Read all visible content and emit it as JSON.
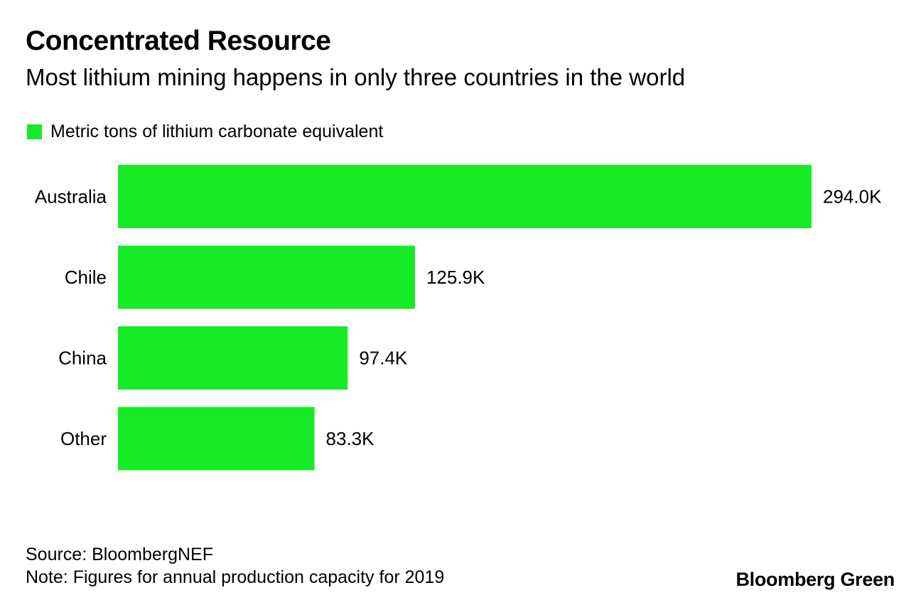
{
  "colors": {
    "bar": "#16eb25",
    "text": "#000000",
    "background": "#ffffff"
  },
  "chart_data": {
    "type": "bar",
    "orientation": "horizontal",
    "title": "Concentrated Resource",
    "subtitle": "Most lithium mining happens in only three countries in the world",
    "legend": {
      "position": "top-left",
      "entries": [
        "Metric tons of lithium carbonate equivalent"
      ]
    },
    "categories": [
      "Australia",
      "Chile",
      "China",
      "Other"
    ],
    "series": [
      {
        "name": "Metric tons of lithium carbonate equivalent",
        "values": [
          294000,
          125900,
          97400,
          83300
        ],
        "data_labels": [
          "294.0K",
          "125.9K",
          "97.4K",
          "83.3K"
        ]
      }
    ],
    "xlim": [
      0,
      294000
    ],
    "grid": false
  },
  "footer": {
    "source": "Source: BloombergNEF",
    "note": "Note: Figures for annual production capacity for 2019",
    "brand": "Bloomberg Green"
  }
}
